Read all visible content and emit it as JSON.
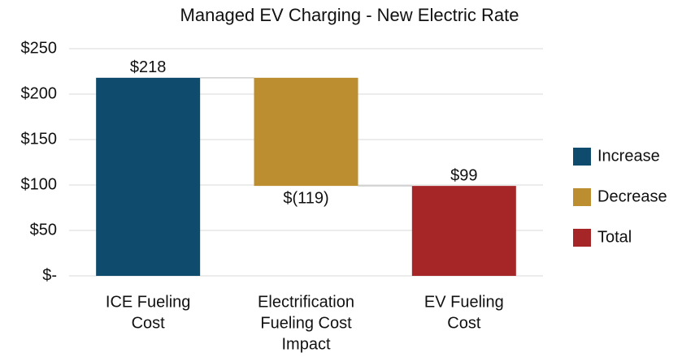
{
  "chart_data": {
    "type": "waterfall",
    "title": "Managed EV Charging - New Electric Rate",
    "categories": [
      [
        "ICE Fueling",
        "Cost"
      ],
      [
        "Electrification",
        "Fueling Cost",
        "Impact"
      ],
      [
        "EV Fueling",
        "Cost"
      ]
    ],
    "series": [
      {
        "name": "Increase",
        "color": "#0e4b6c",
        "values": [
          218,
          null,
          null
        ],
        "value_labels": [
          "$218",
          null,
          null
        ]
      },
      {
        "name": "Decrease",
        "color": "#bd8e30",
        "values": [
          null,
          -119,
          null
        ],
        "value_labels": [
          null,
          "$(119)",
          null
        ]
      },
      {
        "name": "Total",
        "color": "#a62628",
        "values": [
          null,
          null,
          99
        ],
        "value_labels": [
          null,
          null,
          "$99"
        ]
      }
    ],
    "ylim": [
      0,
      250
    ],
    "yticks": [
      {
        "value": 0,
        "label": "$-"
      },
      {
        "value": 50,
        "label": "$50"
      },
      {
        "value": 100,
        "label": "$100"
      },
      {
        "value": 150,
        "label": "$150"
      },
      {
        "value": 200,
        "label": "$200"
      },
      {
        "value": 250,
        "label": "$250"
      }
    ],
    "grid": true,
    "legend": "right"
  }
}
